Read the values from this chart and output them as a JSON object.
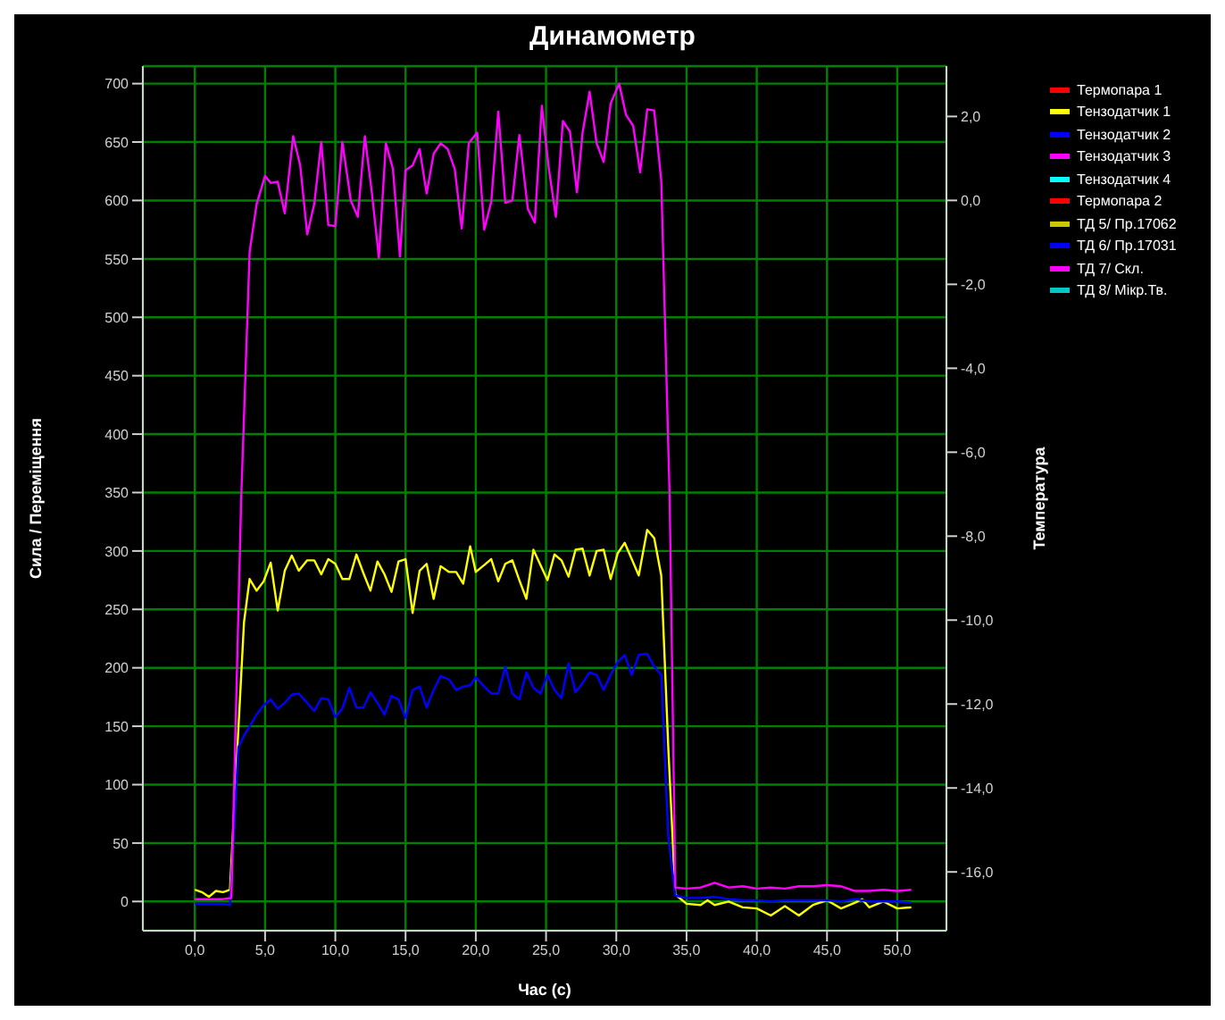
{
  "chart_data": {
    "type": "line",
    "title": "Динамометр",
    "xlabel": "Час (с)",
    "ylabel": "Сила / Переміщення",
    "y2label": "Температура",
    "xlim": [
      -3.7,
      53.5
    ],
    "xticks": [
      {
        "value": 0,
        "label": "0,0"
      },
      {
        "value": 5,
        "label": "5,0"
      },
      {
        "value": 10,
        "label": "10,0"
      },
      {
        "value": 15,
        "label": "15,0"
      },
      {
        "value": 20,
        "label": "20,0"
      },
      {
        "value": 25,
        "label": "25,0"
      },
      {
        "value": 30,
        "label": "30,0"
      },
      {
        "value": 35,
        "label": "35,0"
      },
      {
        "value": 40,
        "label": "40,0"
      },
      {
        "value": 45,
        "label": "45,0"
      },
      {
        "value": 50,
        "label": "50,0"
      }
    ],
    "ylim": [
      -25,
      715
    ],
    "yticks": [
      0,
      50,
      100,
      150,
      200,
      250,
      300,
      350,
      400,
      450,
      500,
      550,
      600,
      650,
      700
    ],
    "y2lim": [
      -17.4,
      3.2
    ],
    "y2ticks": [
      {
        "value": -16,
        "label": "-16,0"
      },
      {
        "value": -14,
        "label": "-14,0"
      },
      {
        "value": -12,
        "label": "-12,0"
      },
      {
        "value": -10,
        "label": "-10,0"
      },
      {
        "value": -8,
        "label": "-8,0"
      },
      {
        "value": -6,
        "label": "-6,0"
      },
      {
        "value": -4,
        "label": "-4,0"
      },
      {
        "value": -2,
        "label": "-2,0"
      },
      {
        "value": 0,
        "label": "0,0"
      },
      {
        "value": 2,
        "label": "2,0"
      }
    ],
    "grid": true,
    "legend": "right",
    "series": [
      {
        "name": "Термопара 1",
        "color": "#ff0000"
      },
      {
        "name": "Тензодатчик 1",
        "color": "#ffff00",
        "x": [
          0,
          0.5,
          1.0,
          1.5,
          2.0,
          2.5,
          2.9,
          3.5,
          3.9,
          4.4,
          4.9,
          5.4,
          5.9,
          6.4,
          6.9,
          7.4,
          8.0,
          8.5,
          9.0,
          9.5,
          10.0,
          10.5,
          11.0,
          11.5,
          12.0,
          12.5,
          13.0,
          13.5,
          14.0,
          14.5,
          15.0,
          15.5,
          16.0,
          16.5,
          17.0,
          17.5,
          18.1,
          18.6,
          19.1,
          19.6,
          20.0,
          20.6,
          21.1,
          21.6,
          22.1,
          22.6,
          23.1,
          23.6,
          24.1,
          24.6,
          25.1,
          25.6,
          26.1,
          26.6,
          27.1,
          27.6,
          28.1,
          28.6,
          29.1,
          29.6,
          30.1,
          30.6,
          31.1,
          31.6,
          32.2,
          32.7,
          33.2,
          33.7,
          34.2,
          35,
          36,
          36.5,
          37,
          38,
          39,
          40,
          41,
          42,
          43,
          44,
          45,
          46,
          47,
          47.5,
          48,
          49,
          50,
          51
        ],
        "values": [
          10,
          8,
          4,
          9,
          8,
          10,
          102,
          239,
          276,
          266,
          274,
          290,
          249,
          283,
          296,
          283,
          292,
          292,
          280,
          293,
          289,
          276,
          276,
          297,
          281,
          266,
          291,
          280,
          265,
          291,
          293,
          247,
          283,
          289,
          259,
          287,
          282,
          282,
          272,
          304,
          282,
          288,
          293,
          274,
          289,
          292,
          275,
          259,
          301,
          288,
          275,
          297,
          292,
          278,
          301,
          302,
          279,
          300,
          301,
          276,
          298,
          307,
          293,
          279,
          318,
          311,
          279,
          132,
          6,
          -2,
          -3,
          1,
          -3,
          0,
          -5,
          -6,
          -12,
          -4,
          -12,
          -3,
          1,
          -6,
          -1,
          2,
          -5,
          0,
          -6,
          -5
        ]
      },
      {
        "name": "Тензодатчик 2",
        "color": "#0000ff",
        "x": [
          0,
          1,
          2,
          2.5,
          3.1,
          3.5,
          3.9,
          4.4,
          4.9,
          5.4,
          5.9,
          6.4,
          6.9,
          7.4,
          8.0,
          8.5,
          9.0,
          9.5,
          10.0,
          10.5,
          11.0,
          11.5,
          12.0,
          12.5,
          13.0,
          13.5,
          14.0,
          14.5,
          15.0,
          15.5,
          16.0,
          16.5,
          17.0,
          17.5,
          18.1,
          18.6,
          19.1,
          19.6,
          20.0,
          20.6,
          21.1,
          21.6,
          22.1,
          22.6,
          23.1,
          23.6,
          24.1,
          24.6,
          25.1,
          25.6,
          26.1,
          26.6,
          27.1,
          27.6,
          28.1,
          28.6,
          29.1,
          29.6,
          30.1,
          30.6,
          31.1,
          31.6,
          32.2,
          32.7,
          33.2,
          33.7,
          34.2,
          35,
          36,
          37,
          38,
          39,
          40,
          41,
          42,
          43,
          44,
          45,
          46,
          47,
          48,
          49,
          50,
          51
        ],
        "values": [
          -2,
          -2,
          -2,
          -3,
          132,
          142,
          150,
          160,
          168,
          173,
          165,
          170,
          177,
          178,
          170,
          163,
          174,
          173,
          158,
          165,
          183,
          166,
          166,
          179,
          170,
          160,
          176,
          173,
          157,
          181,
          184,
          166,
          181,
          193,
          190,
          181,
          184,
          185,
          192,
          184,
          178,
          178,
          201,
          178,
          173,
          196,
          183,
          178,
          194,
          181,
          174,
          204,
          179,
          187,
          196,
          194,
          181,
          194,
          205,
          211,
          194,
          211,
          212,
          201,
          194,
          56,
          5,
          3,
          3,
          4,
          2,
          1,
          1,
          0,
          1,
          1,
          1,
          1,
          0,
          2,
          0,
          0,
          0,
          -1
        ]
      },
      {
        "name": "Тензодатчик 3",
        "color": "#ff00ff",
        "x": [
          0,
          1,
          2,
          2.6,
          3.3,
          3.9,
          4.4,
          5.0,
          5.4,
          5.9,
          6.4,
          7.0,
          7.5,
          8.0,
          8.5,
          9.0,
          9.5,
          10.0,
          10.5,
          11.1,
          11.6,
          12.1,
          12.6,
          13.1,
          13.6,
          14.1,
          14.6,
          15.0,
          15.5,
          16.0,
          16.5,
          17.0,
          17.5,
          18.0,
          18.5,
          19.0,
          19.5,
          20.1,
          20.6,
          21.1,
          21.6,
          22.1,
          22.6,
          23.1,
          23.7,
          24.2,
          24.7,
          25.2,
          25.7,
          26.2,
          26.7,
          27.2,
          27.6,
          28.1,
          28.6,
          29.1,
          29.6,
          30.2,
          30.7,
          31.2,
          31.7,
          32.2,
          32.7,
          33.2,
          33.8,
          34.2,
          35,
          36,
          37,
          38,
          39,
          40,
          41,
          42,
          43,
          44,
          45,
          46,
          47,
          48,
          49,
          50,
          51
        ],
        "values": [
          2,
          2,
          2,
          3,
          345,
          556,
          597,
          621,
          615,
          616,
          589,
          655,
          630,
          571,
          597,
          650,
          579,
          578,
          650,
          600,
          586,
          655,
          607,
          551,
          649,
          627,
          552,
          626,
          630,
          644,
          606,
          640,
          649,
          644,
          627,
          576,
          649,
          658,
          575,
          599,
          676,
          598,
          600,
          656,
          593,
          581,
          681,
          627,
          586,
          668,
          659,
          607,
          658,
          693,
          649,
          633,
          683,
          700,
          673,
          664,
          624,
          678,
          677,
          617,
          345,
          12,
          11,
          12,
          16,
          12,
          13,
          11,
          12,
          11,
          13,
          13,
          14,
          13,
          9,
          9,
          10,
          9,
          10
        ]
      },
      {
        "name": "Тензодатчик 4",
        "color": "#00ffff"
      },
      {
        "name": "Термопара 2",
        "color": "#ff0000"
      },
      {
        "name": "ТД 5/ Пр.17062",
        "color": "#c8c800"
      },
      {
        "name": "ТД 6/ Пр.17031",
        "color": "#0000ff"
      },
      {
        "name": "ТД 7/ Скл.",
        "color": "#ff00ff"
      },
      {
        "name": "ТД 8/ Мікр.Тв.",
        "color": "#00c8c8"
      }
    ]
  }
}
